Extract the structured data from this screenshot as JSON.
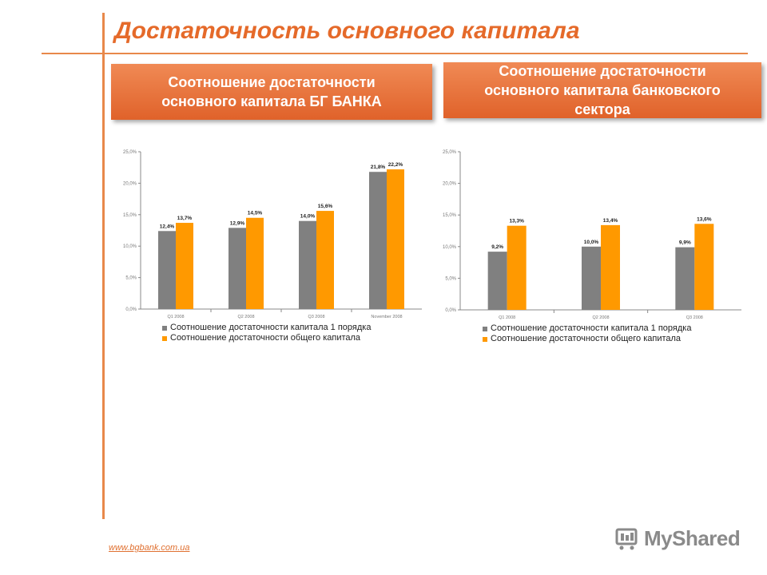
{
  "title": "Достаточность основного капитала",
  "left_panel": {
    "banner_line1": "Соотношение достаточности",
    "banner_line2": "основного капитала БГ БАНКА"
  },
  "right_panel": {
    "banner_line1": "Соотношение достаточности",
    "banner_line2": "основного капитала банковского",
    "banner_line3": "сектора"
  },
  "legend": {
    "series1": "Соотношение достаточности капитала 1 порядка",
    "series2": "Соотношение достаточности общего капитала"
  },
  "footer_url": "www.bgbank.com.ua",
  "watermark": "MyShared",
  "colors": {
    "series1": "#808080",
    "series2": "#ff9900",
    "accent": "#e56a2a"
  },
  "chart_data": [
    {
      "type": "bar",
      "categories": [
        "Q1 2008",
        "Q2 2008",
        "Q3 2008",
        "November 2008"
      ],
      "series": [
        {
          "name": "Соотношение достаточности капитала 1 порядка",
          "values": [
            12.4,
            12.9,
            14.0,
            21.8
          ],
          "labels": [
            "12,4%",
            "12,9%",
            "14,0%",
            "21,8%"
          ]
        },
        {
          "name": "Соотношение достаточности общего капитала",
          "values": [
            13.7,
            14.5,
            15.6,
            22.2
          ],
          "labels": [
            "13,7%",
            "14,5%",
            "15,6%",
            "22,2%"
          ]
        }
      ],
      "ylim": [
        0,
        25
      ],
      "yticks": [
        "0,0%",
        "5,0%",
        "10,0%",
        "15,0%",
        "20,0%",
        "25,0%"
      ],
      "legend_position": "bottom"
    },
    {
      "type": "bar",
      "categories": [
        "Q1 2008",
        "Q2 2008",
        "Q3 2008"
      ],
      "series": [
        {
          "name": "Соотношение достаточности капитала 1 порядка",
          "values": [
            9.2,
            10.0,
            9.9
          ],
          "labels": [
            "9,2%",
            "10,0%",
            "9,9%"
          ]
        },
        {
          "name": "Соотношение достаточности общего капитала",
          "values": [
            13.3,
            13.4,
            13.6
          ],
          "labels": [
            "13,3%",
            "13,4%",
            "13,6%"
          ]
        }
      ],
      "ylim": [
        0,
        25
      ],
      "yticks": [
        "0,0%",
        "5,0%",
        "10,0%",
        "15,0%",
        "20,0%",
        "25,0%"
      ],
      "legend_position": "bottom"
    }
  ]
}
